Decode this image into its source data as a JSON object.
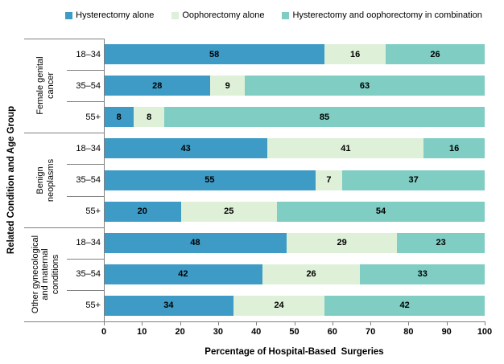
{
  "legend": [
    {
      "label": "Hysterectomy alone",
      "color": "#3E9BC6"
    },
    {
      "label": "Oophorectomy alone",
      "color": "#DFF0D9"
    },
    {
      "label": "Hysterectomy and oophorectomy in combination",
      "color": "#7FCDC3"
    }
  ],
  "chart_data": {
    "type": "bar",
    "orientation": "horizontal",
    "stacked": true,
    "title": "",
    "xlabel": "Percentage of Hospital-Based  Surgeries",
    "ylabel": "Related Condition and Age Group",
    "xlim": [
      0,
      100
    ],
    "xticks": [
      0,
      10,
      20,
      30,
      40,
      50,
      60,
      70,
      80,
      90,
      100
    ],
    "grid": false,
    "legend_position": "top",
    "series_names": [
      "Hysterectomy alone",
      "Oophorectomy alone",
      "Hysterectomy and oophorectomy in combination"
    ],
    "groups": [
      {
        "label": "Female genital cancer",
        "label_lines": [
          "Female genital",
          "cancer"
        ],
        "rows": [
          {
            "age": "18–34",
            "values": [
              58,
              16,
              26
            ]
          },
          {
            "age": "35–54",
            "values": [
              28,
              9,
              63
            ]
          },
          {
            "age": "55+",
            "values": [
              8,
              8,
              85
            ]
          }
        ]
      },
      {
        "label": "Benign neoplasms",
        "label_lines": [
          "Benign",
          "neoplasms"
        ],
        "rows": [
          {
            "age": "18–34",
            "values": [
              43,
              41,
              16
            ]
          },
          {
            "age": "35–54",
            "values": [
              55,
              7,
              37
            ]
          },
          {
            "age": "55+",
            "values": [
              20,
              25,
              54
            ]
          }
        ]
      },
      {
        "label": "Other gynecological and maternal conditions",
        "label_lines": [
          "Other gynecological",
          "and maternal",
          "conditions"
        ],
        "rows": [
          {
            "age": "18–34",
            "values": [
              48,
              29,
              23
            ]
          },
          {
            "age": "35–54",
            "values": [
              42,
              26,
              33
            ]
          },
          {
            "age": "55+",
            "values": [
              34,
              24,
              42
            ]
          }
        ]
      }
    ]
  }
}
